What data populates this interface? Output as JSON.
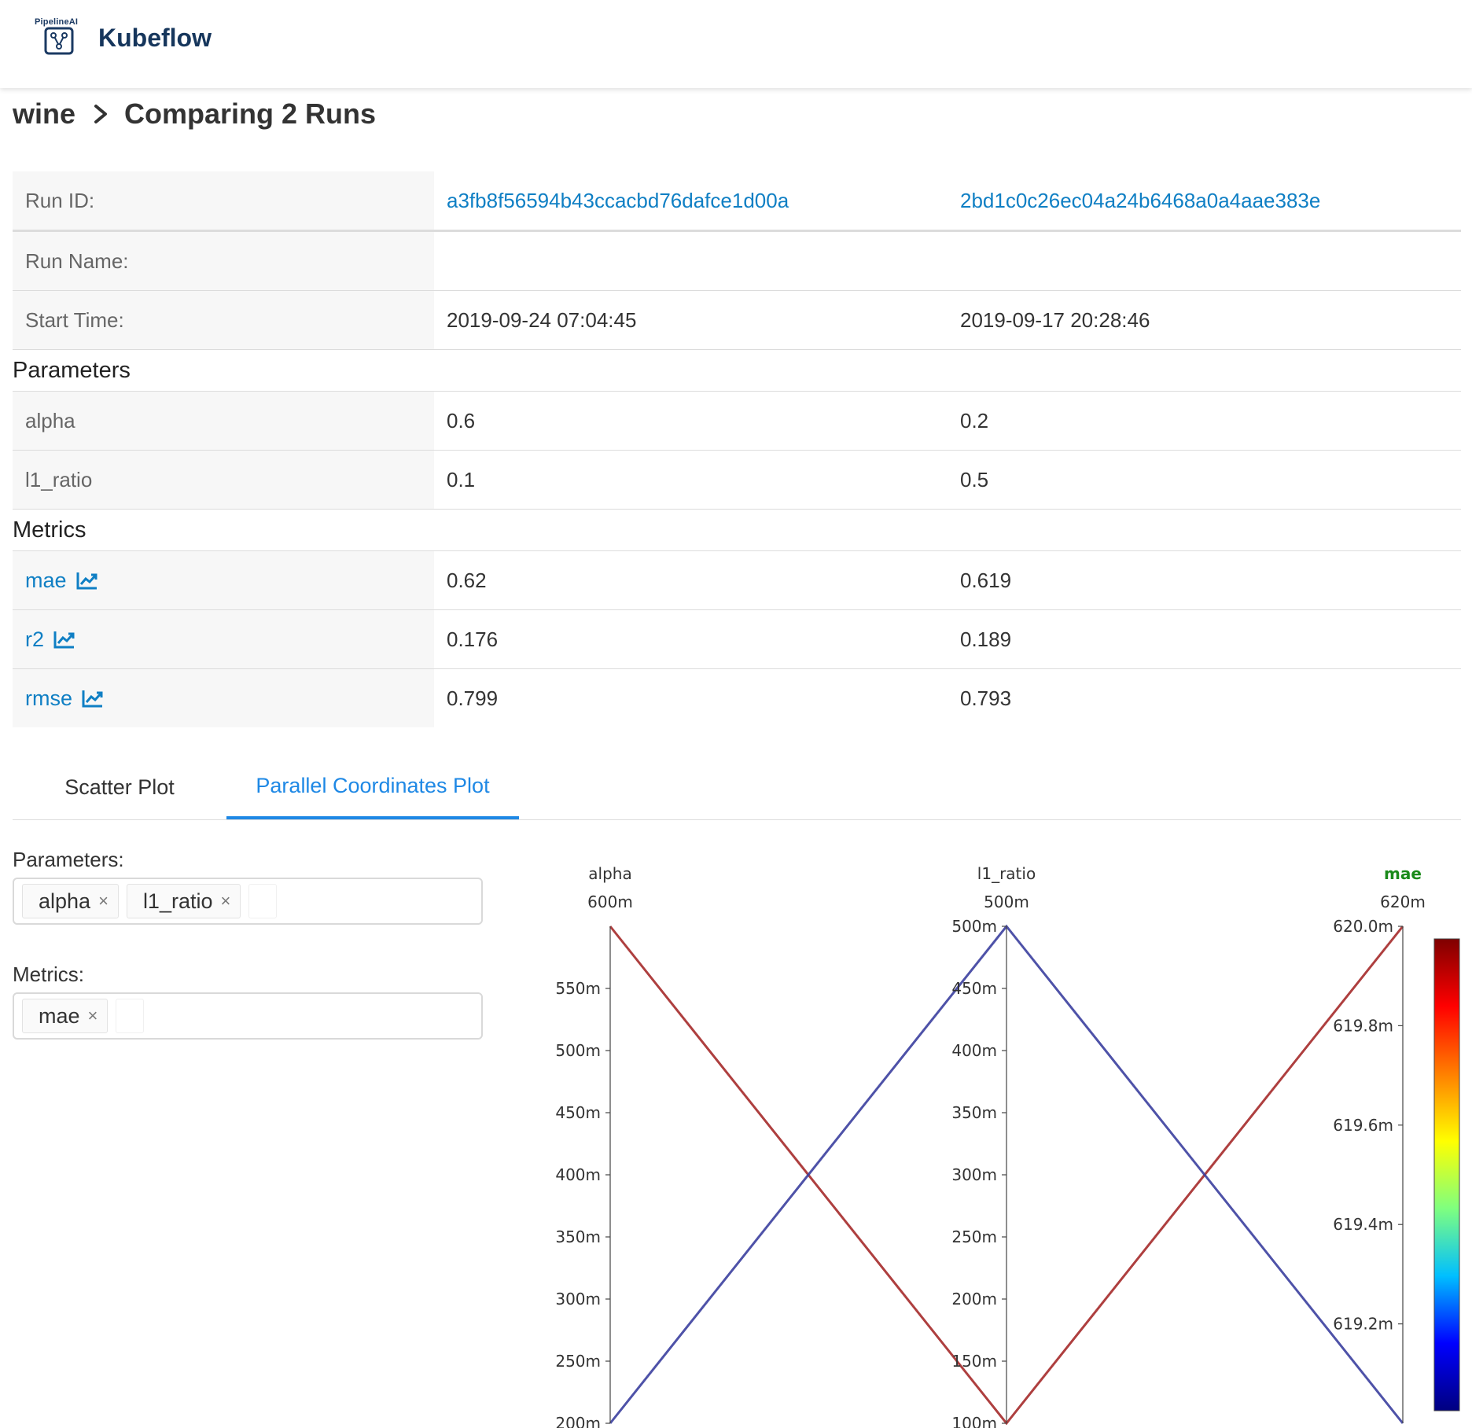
{
  "header": {
    "logo_caption": "PipelineAI",
    "brand": "Kubeflow"
  },
  "breadcrumb": {
    "experiment": "wine",
    "title": "Comparing 2 Runs"
  },
  "runs": {
    "id_label": "Run ID:",
    "name_label": "Run Name:",
    "start_label": "Start Time:",
    "ids": [
      "a3fb8f56594b43ccacbd76dafce1d00a",
      "2bd1c0c26ec04a24b6468a0a4aae383e"
    ],
    "names": [
      "",
      ""
    ],
    "start_times": [
      "2019-09-24 07:04:45",
      "2019-09-17 20:28:46"
    ]
  },
  "parameters": {
    "heading": "Parameters",
    "rows": [
      {
        "name": "alpha",
        "values": [
          "0.6",
          "0.2"
        ]
      },
      {
        "name": "l1_ratio",
        "values": [
          "0.1",
          "0.5"
        ]
      }
    ]
  },
  "metrics": {
    "heading": "Metrics",
    "rows": [
      {
        "name": "mae",
        "values": [
          "0.62",
          "0.619"
        ]
      },
      {
        "name": "r2",
        "values": [
          "0.176",
          "0.189"
        ]
      },
      {
        "name": "rmse",
        "values": [
          "0.799",
          "0.793"
        ]
      }
    ]
  },
  "tabs": {
    "scatter": "Scatter Plot",
    "parallel": "Parallel Coordinates Plot",
    "active": "parallel"
  },
  "selectors": {
    "params_label": "Parameters:",
    "params_selected": [
      "alpha",
      "l1_ratio"
    ],
    "metrics_label": "Metrics:",
    "metrics_selected": [
      "mae"
    ],
    "remove_glyph": "×"
  },
  "chart_data": {
    "type": "parallel-coordinates",
    "dimensions": [
      {
        "label": "alpha",
        "top_value": "600m",
        "range": [
          0.2,
          0.6
        ],
        "ticks": [
          "200m",
          "250m",
          "300m",
          "350m",
          "400m",
          "450m",
          "500m",
          "550m"
        ],
        "tick_values": [
          0.2,
          0.25,
          0.3,
          0.35,
          0.4,
          0.45,
          0.5,
          0.55
        ],
        "highlight": false
      },
      {
        "label": "l1_ratio",
        "top_value": "500m",
        "range": [
          0.1,
          0.5
        ],
        "ticks": [
          "100m",
          "150m",
          "200m",
          "250m",
          "300m",
          "350m",
          "400m",
          "450m",
          "500m"
        ],
        "tick_values": [
          0.1,
          0.15,
          0.2,
          0.25,
          0.3,
          0.35,
          0.4,
          0.45,
          0.5
        ],
        "highlight": false
      },
      {
        "label": "mae",
        "top_value": "620m",
        "range": [
          0.619,
          0.62
        ],
        "ticks": [
          "619.2m",
          "619.4m",
          "619.6m",
          "619.8m",
          "620.0m"
        ],
        "tick_values": [
          0.6192,
          0.6194,
          0.6196,
          0.6198,
          0.62
        ],
        "highlight": true
      }
    ],
    "lines": [
      {
        "values": [
          0.6,
          0.1,
          0.62
        ],
        "color": "#a52a2a"
      },
      {
        "values": [
          0.2,
          0.5,
          0.619
        ],
        "color": "#3b3f9e"
      }
    ],
    "colorscale": [
      "#00007f",
      "#0000ff",
      "#00bfff",
      "#7fff7f",
      "#ffff00",
      "#ff7f00",
      "#ff0000",
      "#7f0000"
    ],
    "highlight_color": "#1a8a1a"
  }
}
